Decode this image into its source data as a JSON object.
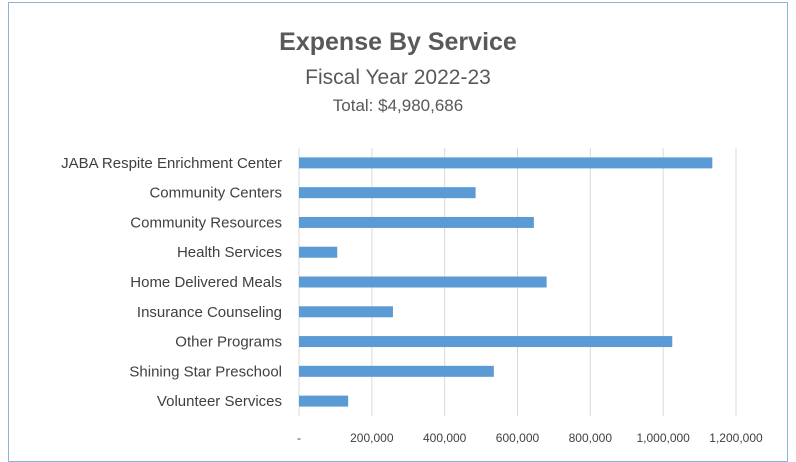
{
  "chart_data": {
    "type": "bar",
    "orientation": "horizontal",
    "title": "Expense By Service",
    "subtitle": "Fiscal Year 2022-23",
    "total": "Total: $4,980,686",
    "categories": [
      "JABA Respite Enrichment Center",
      "Community Centers",
      "Community Resources",
      "Health Services",
      "Home Delivered Meals",
      "Insurance Counseling",
      "Other Programs",
      "Shining Star Preschool",
      "Volunteer Services"
    ],
    "values": [
      1135000,
      485000,
      645000,
      105000,
      680000,
      258000,
      1025000,
      535000,
      135000
    ],
    "xlim": [
      0,
      1200000
    ],
    "xticks": [
      0,
      200000,
      400000,
      600000,
      800000,
      1000000,
      1200000
    ],
    "xtick_labels": [
      "-",
      "200,000",
      "400,000",
      "600,000",
      "800,000",
      "1,000,000",
      "1,200,000"
    ],
    "grid": true,
    "bar_color": "#5b9bd5",
    "grid_color": "#d9d9d9"
  }
}
